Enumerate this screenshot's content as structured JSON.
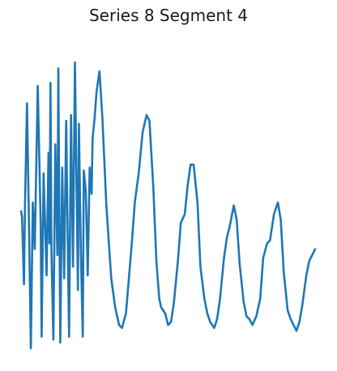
{
  "chart_data": {
    "type": "line",
    "title": "Series 8 Segment 4",
    "xlabel": "",
    "ylabel": "",
    "axes_visible": false,
    "grid": false,
    "legend": "none",
    "color": "#1f77b4",
    "xlim": [
      0,
      300
    ],
    "ylim": [
      0,
      1
    ],
    "series": [
      {
        "x": [
          0,
          1,
          3,
          4,
          6,
          8,
          10,
          12,
          14,
          17,
          20,
          21,
          23,
          26,
          28,
          29,
          30,
          31,
          33,
          35,
          37,
          38,
          39,
          40,
          42,
          44,
          46,
          48,
          49,
          51,
          53,
          55,
          57,
          58,
          59,
          61,
          63,
          64,
          66,
          68,
          70,
          72,
          73,
          75,
          77,
          80,
          83,
          87,
          92,
          96,
          100,
          103,
          107,
          110,
          113,
          116,
          120,
          124,
          128,
          131,
          135,
          138,
          141,
          143,
          147,
          150,
          153,
          156,
          160,
          163,
          167,
          170,
          173,
          176,
          180,
          183,
          187,
          190,
          193,
          197,
          200,
          203,
          207,
          210,
          213,
          217,
          220,
          223,
          227,
          230,
          233,
          236,
          240,
          244,
          247,
          251,
          254,
          258,
          262,
          265,
          268,
          272,
          275,
          278,
          281,
          284,
          287,
          291,
          294,
          297,
          300
        ],
        "y": [
          0.47,
          0.45,
          0.22,
          0.48,
          0.84,
          0.44,
          0.0,
          0.5,
          0.34,
          0.9,
          0.43,
          0.04,
          0.6,
          0.25,
          0.67,
          0.36,
          0.91,
          0.33,
          0.03,
          0.7,
          0.32,
          0.96,
          0.47,
          0.02,
          0.62,
          0.24,
          0.78,
          0.27,
          0.04,
          0.8,
          0.28,
          0.98,
          0.45,
          0.2,
          0.77,
          0.33,
          0.04,
          0.61,
          0.54,
          0.25,
          0.62,
          0.53,
          0.72,
          0.79,
          0.88,
          0.95,
          0.79,
          0.49,
          0.24,
          0.14,
          0.08,
          0.07,
          0.12,
          0.24,
          0.36,
          0.5,
          0.6,
          0.74,
          0.8,
          0.78,
          0.55,
          0.3,
          0.17,
          0.14,
          0.12,
          0.08,
          0.09,
          0.16,
          0.3,
          0.43,
          0.46,
          0.56,
          0.63,
          0.63,
          0.5,
          0.28,
          0.17,
          0.12,
          0.09,
          0.07,
          0.1,
          0.17,
          0.31,
          0.38,
          0.42,
          0.49,
          0.44,
          0.29,
          0.16,
          0.11,
          0.1,
          0.08,
          0.11,
          0.17,
          0.31,
          0.36,
          0.37,
          0.46,
          0.5,
          0.44,
          0.26,
          0.13,
          0.1,
          0.08,
          0.06,
          0.09,
          0.15,
          0.25,
          0.3,
          0.32,
          0.34
        ]
      }
    ]
  }
}
